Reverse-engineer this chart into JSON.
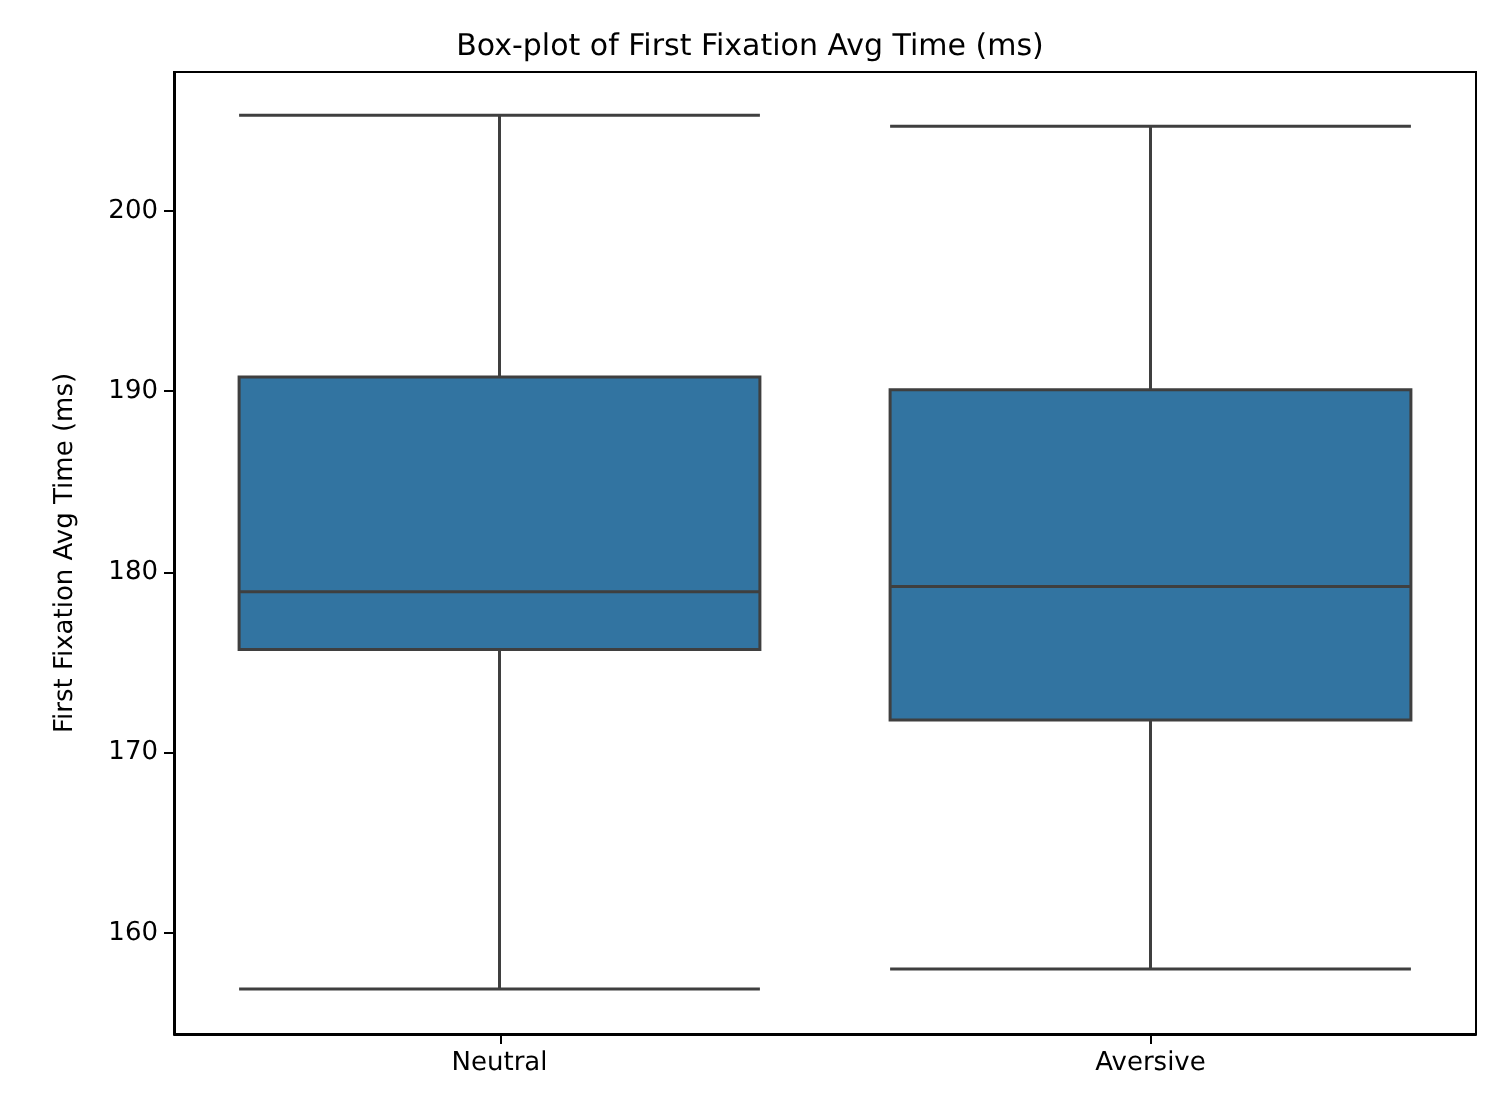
{
  "chart_data": {
    "type": "box",
    "title": "Box-plot of First Fixation Avg Time (ms)",
    "ylabel": "First Fixation Avg Time (ms)",
    "categories": [
      "Neutral",
      "Aversive"
    ],
    "color": "#3274a1",
    "boxes": [
      {
        "low": 156.9,
        "q1": 175.7,
        "median": 178.9,
        "q3": 190.8,
        "high": 205.3
      },
      {
        "low": 158.0,
        "q1": 171.8,
        "median": 179.2,
        "q3": 190.1,
        "high": 204.7
      }
    ],
    "ylim": [
      154.4,
      207.7
    ],
    "yticks": [
      160,
      170,
      180,
      190,
      200
    ],
    "grid": false
  }
}
